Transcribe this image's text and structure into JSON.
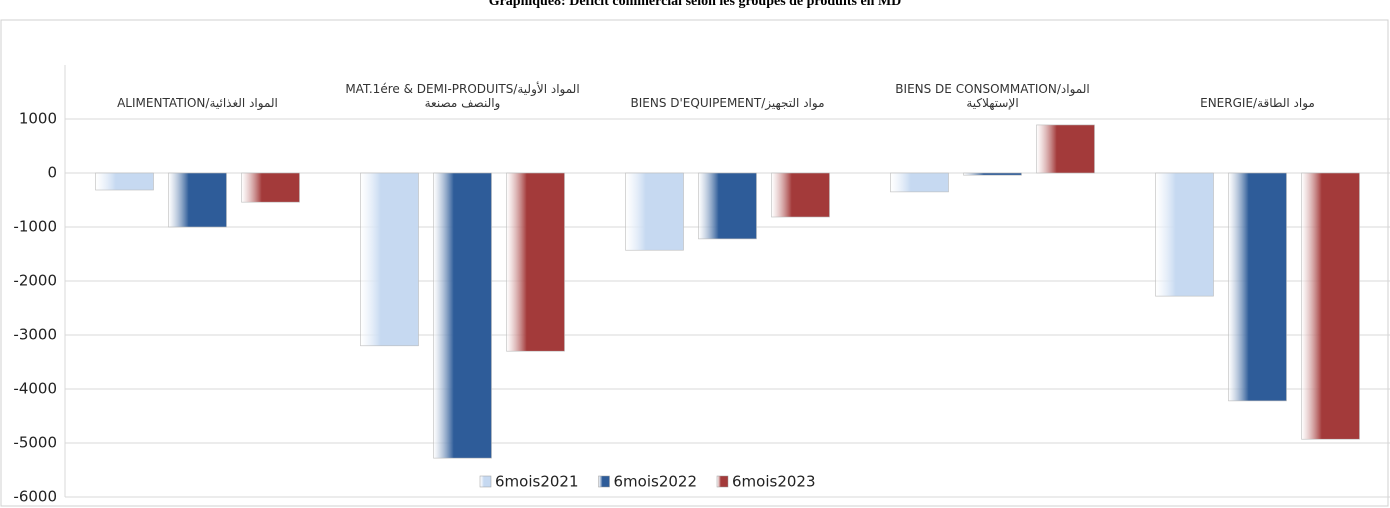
{
  "chart_data": {
    "type": "bar",
    "title": "Graphique8: Deficit commercial selon les groupes de produits en MD",
    "categories": [
      "ALIMENTATION/المواد الغذائية",
      "MAT.1ére & DEMI-PRODUITS/المواد الأولية والنصف مصنعة",
      "BIENS D'EQUIPEMENT/مواد التجهيز",
      "BIENS DE CONSOMMATION/المواد الإستهلاكية",
      "ENERGIE/مواد الطاقة"
    ],
    "series": [
      {
        "name": "6mois2021",
        "color": "#c6d9f1",
        "values": [
          -315,
          -3200,
          -1430,
          -350,
          -2280
        ]
      },
      {
        "name": "6mois2022",
        "color": "#2e5c99",
        "values": [
          -1000,
          -5280,
          -1220,
          -40,
          -4220
        ]
      },
      {
        "name": "6mois2023",
        "color": "#a33a3a",
        "values": [
          -540,
          -3300,
          -815,
          890,
          -4930
        ]
      }
    ],
    "ylim": [
      -6000,
      2000
    ],
    "yticks": [
      1000,
      0,
      -1000,
      -2000,
      -3000,
      -4000,
      -5000,
      -6000
    ],
    "grid": true
  }
}
